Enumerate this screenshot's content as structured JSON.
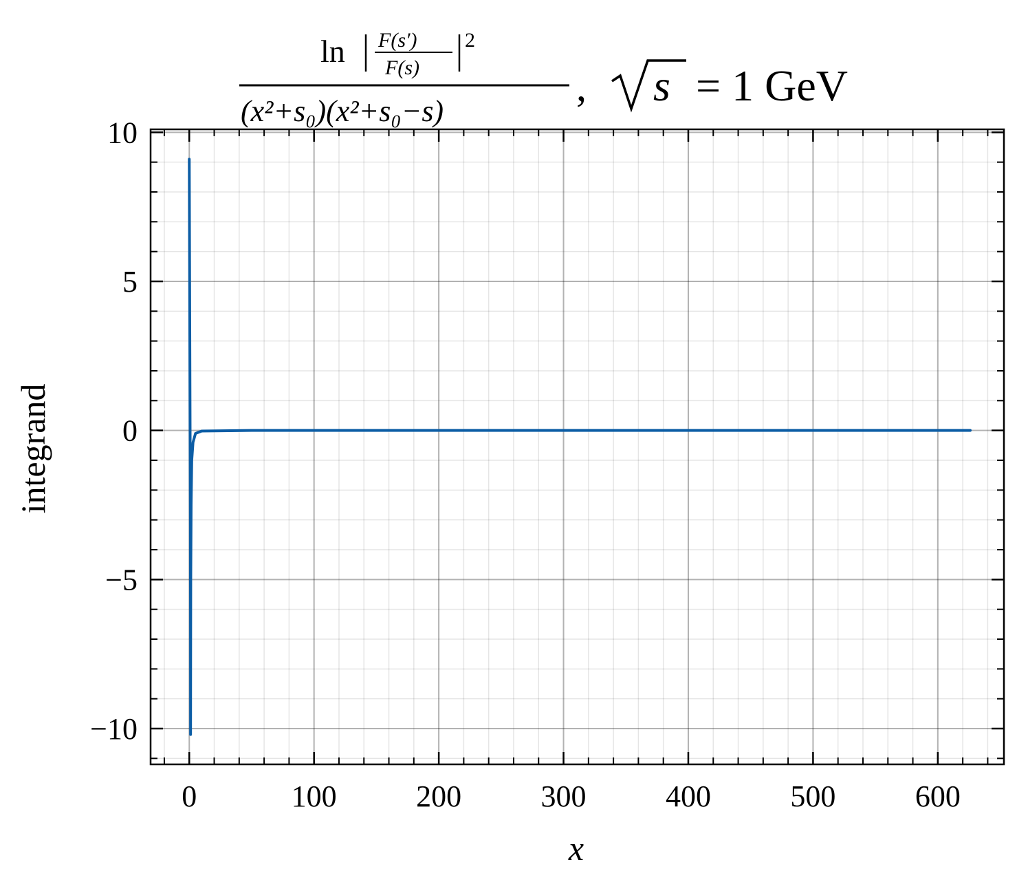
{
  "chart_data": {
    "type": "line",
    "title": {
      "numerator": "ln | F(s′) / F(s) |²",
      "numerator_parts": {
        "ln": "ln",
        "frac_top": "F(s′)",
        "frac_bottom": "F(s)",
        "power": "2"
      },
      "denominator": "(x²+s₀)(x²+s₀−s)",
      "suffix": ", √s = 1 GeV",
      "suffix_parts": {
        "comma": ",",
        "sqrt_arg": "s",
        "rest": "= 1 GeV"
      }
    },
    "xlabel": "x",
    "ylabel": "integrand",
    "xlim": [
      -31,
      653
    ],
    "ylim": [
      -11.2,
      10.1
    ],
    "xticks": [
      0,
      100,
      200,
      300,
      400,
      500,
      600
    ],
    "xtick_labels": [
      "0",
      "100",
      "200",
      "300",
      "400",
      "500",
      "600"
    ],
    "yticks": [
      10,
      5,
      0,
      -5,
      -10
    ],
    "ytick_labels": [
      "10",
      "5",
      "0",
      "−5",
      "−10"
    ],
    "x_minor_step": 20,
    "y_minor_step": 1,
    "grid": true,
    "legend": "none",
    "series": [
      {
        "color": "#0C5DA5",
        "x": [
          0.0,
          0.3,
          0.6,
          0.9,
          1.0,
          1.05,
          1.1,
          1.2,
          1.5,
          2.0,
          3.0,
          5.0,
          10.0,
          50.0,
          200.0,
          400.0,
          626.0
        ],
        "y": [
          9.1,
          5.0,
          1.0,
          -3.0,
          -6.0,
          -10.2,
          -8.0,
          -5.0,
          -2.5,
          -1.0,
          -0.4,
          -0.1,
          -0.02,
          0.0,
          0.0,
          0.0,
          0.0
        ]
      }
    ]
  }
}
